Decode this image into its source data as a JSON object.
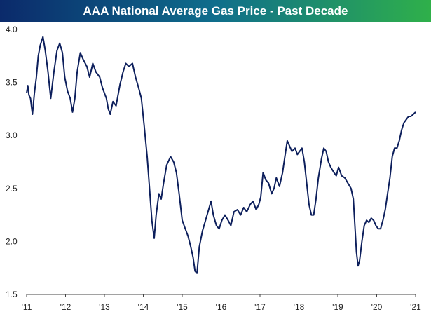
{
  "title": "AAA National Average Gas Price - Past Decade",
  "colors": {
    "title_gradient_start": "#0b2a6b",
    "title_gradient_mid": "#0f6e8c",
    "title_gradient_end": "#2fb04a",
    "line": "#0d1f5c",
    "axis": "#444444",
    "text": "#222222"
  },
  "chart_data": {
    "type": "line",
    "title": "AAA National Average Gas Price - Past Decade",
    "xlabel": "",
    "ylabel": "",
    "ylim": [
      1.5,
      4.0
    ],
    "xlim": [
      2011.0,
      2021.0
    ],
    "grid": false,
    "y_ticks": [
      {
        "value": 1.5,
        "label": "1.5"
      },
      {
        "value": 2.0,
        "label": "2.0"
      },
      {
        "value": 2.5,
        "label": "2.5"
      },
      {
        "value": 3.0,
        "label": "3.0"
      },
      {
        "value": 3.5,
        "label": "3.5"
      },
      {
        "value": 4.0,
        "label": "4.0"
      }
    ],
    "x_ticks": [
      {
        "value": 2011,
        "label": "'11"
      },
      {
        "value": 2012,
        "label": "'12"
      },
      {
        "value": 2013,
        "label": "'13"
      },
      {
        "value": 2014,
        "label": "'14"
      },
      {
        "value": 2015,
        "label": "'15"
      },
      {
        "value": 2016,
        "label": "'16"
      },
      {
        "value": 2017,
        "label": "'17"
      },
      {
        "value": 2018,
        "label": "'18"
      },
      {
        "value": 2019,
        "label": "'19"
      },
      {
        "value": 2020,
        "label": "'20"
      },
      {
        "value": 2021,
        "label": "'21"
      }
    ],
    "series": [
      {
        "values": [
          [
            2011.0,
            3.4
          ],
          [
            2011.03,
            3.47
          ],
          [
            2011.06,
            3.38
          ],
          [
            2011.1,
            3.35
          ],
          [
            2011.15,
            3.2
          ],
          [
            2011.2,
            3.4
          ],
          [
            2011.25,
            3.55
          ],
          [
            2011.3,
            3.75
          ],
          [
            2011.35,
            3.85
          ],
          [
            2011.42,
            3.93
          ],
          [
            2011.48,
            3.8
          ],
          [
            2011.55,
            3.6
          ],
          [
            2011.62,
            3.35
          ],
          [
            2011.7,
            3.6
          ],
          [
            2011.78,
            3.8
          ],
          [
            2011.85,
            3.87
          ],
          [
            2011.92,
            3.78
          ],
          [
            2011.98,
            3.55
          ],
          [
            2012.05,
            3.42
          ],
          [
            2012.12,
            3.35
          ],
          [
            2012.18,
            3.22
          ],
          [
            2012.24,
            3.35
          ],
          [
            2012.3,
            3.6
          ],
          [
            2012.38,
            3.78
          ],
          [
            2012.45,
            3.72
          ],
          [
            2012.55,
            3.65
          ],
          [
            2012.62,
            3.55
          ],
          [
            2012.7,
            3.68
          ],
          [
            2012.78,
            3.6
          ],
          [
            2012.88,
            3.55
          ],
          [
            2012.95,
            3.45
          ],
          [
            2013.05,
            3.35
          ],
          [
            2013.1,
            3.25
          ],
          [
            2013.15,
            3.2
          ],
          [
            2013.22,
            3.32
          ],
          [
            2013.3,
            3.28
          ],
          [
            2013.4,
            3.48
          ],
          [
            2013.48,
            3.6
          ],
          [
            2013.55,
            3.68
          ],
          [
            2013.63,
            3.65
          ],
          [
            2013.72,
            3.68
          ],
          [
            2013.8,
            3.55
          ],
          [
            2013.88,
            3.45
          ],
          [
            2013.95,
            3.35
          ],
          [
            2014.02,
            3.1
          ],
          [
            2014.1,
            2.8
          ],
          [
            2014.15,
            2.55
          ],
          [
            2014.22,
            2.2
          ],
          [
            2014.28,
            2.03
          ],
          [
            2014.33,
            2.25
          ],
          [
            2014.4,
            2.45
          ],
          [
            2014.46,
            2.4
          ],
          [
            2014.52,
            2.55
          ],
          [
            2014.6,
            2.72
          ],
          [
            2014.7,
            2.8
          ],
          [
            2014.78,
            2.75
          ],
          [
            2014.85,
            2.65
          ],
          [
            2014.92,
            2.45
          ],
          [
            2015.0,
            2.2
          ],
          [
            2015.08,
            2.12
          ],
          [
            2015.15,
            2.05
          ],
          [
            2015.22,
            1.95
          ],
          [
            2015.28,
            1.85
          ],
          [
            2015.33,
            1.72
          ],
          [
            2015.38,
            1.7
          ],
          [
            2015.44,
            1.95
          ],
          [
            2015.52,
            2.1
          ],
          [
            2015.6,
            2.2
          ],
          [
            2015.68,
            2.3
          ],
          [
            2015.74,
            2.38
          ],
          [
            2015.8,
            2.25
          ],
          [
            2015.88,
            2.15
          ],
          [
            2015.95,
            2.12
          ],
          [
            2016.02,
            2.2
          ],
          [
            2016.1,
            2.25
          ],
          [
            2016.18,
            2.2
          ],
          [
            2016.25,
            2.15
          ],
          [
            2016.33,
            2.28
          ],
          [
            2016.42,
            2.3
          ],
          [
            2016.5,
            2.25
          ],
          [
            2016.58,
            2.32
          ],
          [
            2016.66,
            2.28
          ],
          [
            2016.75,
            2.35
          ],
          [
            2016.82,
            2.38
          ],
          [
            2016.9,
            2.3
          ],
          [
            2016.97,
            2.35
          ],
          [
            2017.02,
            2.42
          ],
          [
            2017.08,
            2.65
          ],
          [
            2017.15,
            2.58
          ],
          [
            2017.22,
            2.55
          ],
          [
            2017.3,
            2.45
          ],
          [
            2017.36,
            2.5
          ],
          [
            2017.42,
            2.6
          ],
          [
            2017.5,
            2.52
          ],
          [
            2017.58,
            2.65
          ],
          [
            2017.64,
            2.8
          ],
          [
            2017.7,
            2.95
          ],
          [
            2017.76,
            2.9
          ],
          [
            2017.82,
            2.85
          ],
          [
            2017.9,
            2.88
          ],
          [
            2017.96,
            2.82
          ],
          [
            2018.02,
            2.85
          ],
          [
            2018.08,
            2.88
          ],
          [
            2018.14,
            2.75
          ],
          [
            2018.2,
            2.55
          ],
          [
            2018.26,
            2.35
          ],
          [
            2018.32,
            2.25
          ],
          [
            2018.38,
            2.25
          ],
          [
            2018.44,
            2.4
          ],
          [
            2018.5,
            2.6
          ],
          [
            2018.58,
            2.78
          ],
          [
            2018.64,
            2.88
          ],
          [
            2018.7,
            2.85
          ],
          [
            2018.76,
            2.75
          ],
          [
            2018.82,
            2.7
          ],
          [
            2018.9,
            2.65
          ],
          [
            2018.96,
            2.62
          ],
          [
            2019.02,
            2.7
          ],
          [
            2019.1,
            2.62
          ],
          [
            2019.18,
            2.6
          ],
          [
            2019.26,
            2.55
          ],
          [
            2019.34,
            2.5
          ],
          [
            2019.4,
            2.4
          ],
          [
            2019.44,
            2.15
          ],
          [
            2019.48,
            1.9
          ],
          [
            2019.52,
            1.77
          ],
          [
            2019.56,
            1.82
          ],
          [
            2019.62,
            2.0
          ],
          [
            2019.68,
            2.15
          ],
          [
            2019.74,
            2.2
          ],
          [
            2019.8,
            2.18
          ],
          [
            2019.86,
            2.22
          ],
          [
            2019.92,
            2.2
          ],
          [
            2019.98,
            2.15
          ],
          [
            2020.04,
            2.12
          ],
          [
            2020.1,
            2.12
          ],
          [
            2020.16,
            2.2
          ],
          [
            2020.22,
            2.3
          ],
          [
            2020.28,
            2.45
          ],
          [
            2020.34,
            2.6
          ],
          [
            2020.4,
            2.8
          ],
          [
            2020.46,
            2.88
          ],
          [
            2020.52,
            2.88
          ],
          [
            2020.58,
            2.95
          ],
          [
            2020.64,
            3.05
          ],
          [
            2020.7,
            3.12
          ],
          [
            2020.76,
            3.15
          ],
          [
            2020.82,
            3.18
          ],
          [
            2020.88,
            3.18
          ],
          [
            2020.94,
            3.2
          ],
          [
            2021.0,
            3.22
          ]
        ]
      }
    ]
  }
}
